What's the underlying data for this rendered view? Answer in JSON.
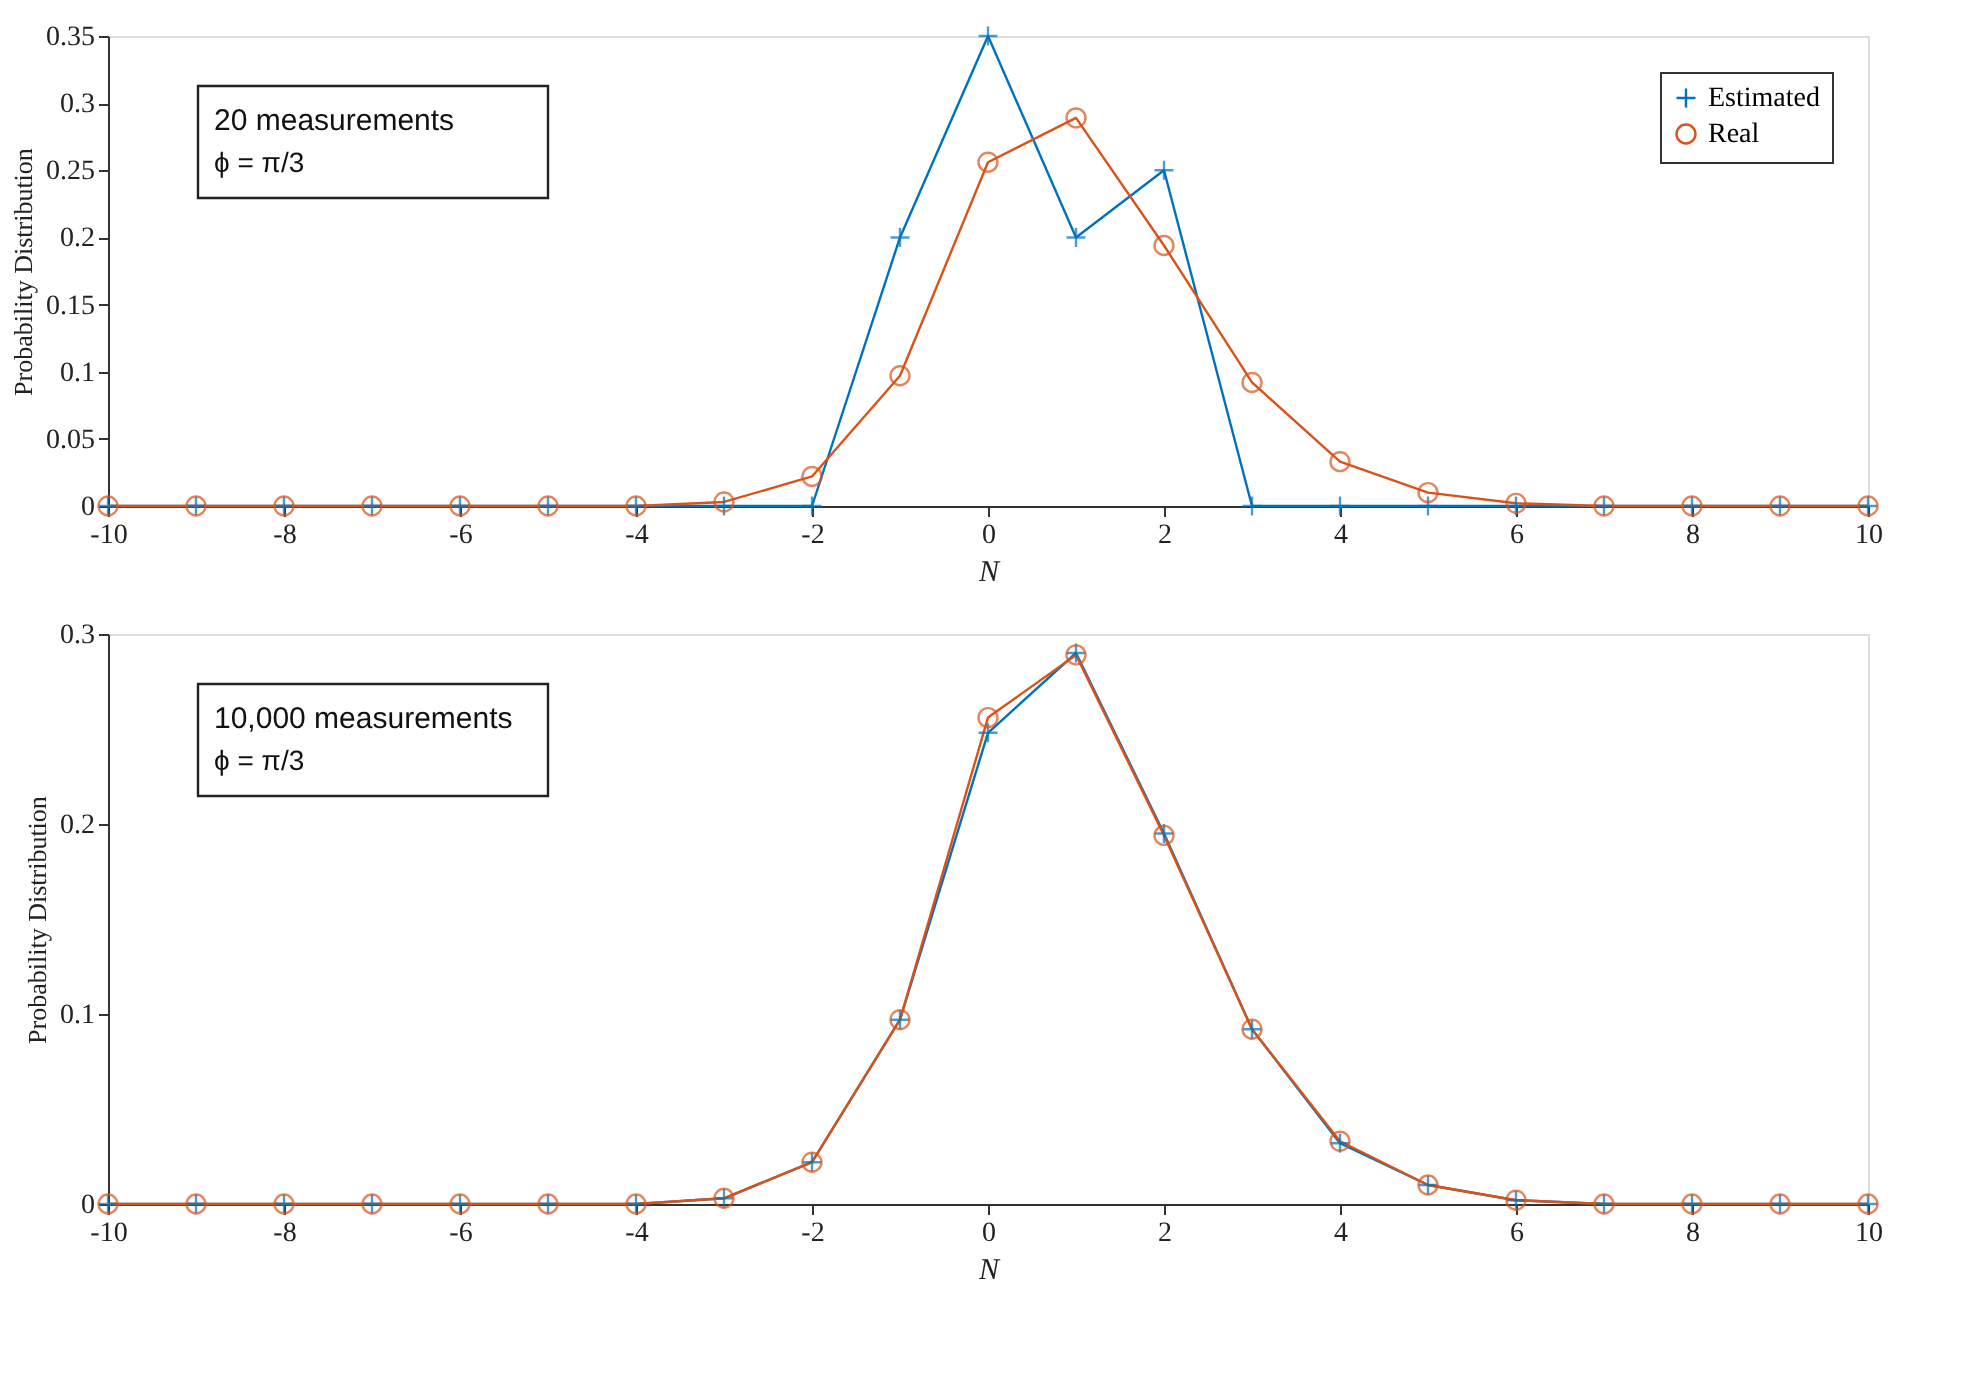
{
  "chart_data": [
    {
      "type": "line",
      "xlabel": "N",
      "ylabel": "Probability Distribution",
      "legend": "top right",
      "grid": false,
      "annotations": [
        "20 measurements",
        "ϕ = π/3"
      ],
      "x": [
        -10,
        -9,
        -8,
        -7,
        -6,
        -5,
        -4,
        -3,
        -2,
        -1,
        0,
        1,
        2,
        3,
        4,
        5,
        6,
        7,
        8,
        9,
        10
      ],
      "series": [
        {
          "name": "Estimated",
          "color": "#0072bd",
          "marker": "cross",
          "values": [
            0,
            0,
            0,
            0,
            0,
            0,
            0,
            0,
            0,
            0.2,
            0.35,
            0.2,
            0.25,
            0,
            0,
            0,
            0,
            0,
            0,
            0,
            0
          ]
        },
        {
          "name": "Real",
          "color": "#d95319",
          "marker": "circle",
          "values": [
            0,
            0,
            0,
            0,
            0,
            0,
            0,
            0.003,
            0.022,
            0.097,
            0.256,
            0.289,
            0.194,
            0.092,
            0.033,
            0.01,
            0.002,
            0,
            0,
            0,
            0
          ]
        }
      ],
      "xlim": [
        -10,
        10
      ],
      "xticks": [
        -10,
        -8,
        -6,
        -4,
        -2,
        0,
        2,
        4,
        6,
        8,
        10
      ],
      "ylim": [
        0,
        0.35
      ],
      "yticks": [
        0,
        0.05,
        0.1,
        0.15,
        0.2,
        0.25,
        0.3,
        0.35
      ]
    },
    {
      "type": "line",
      "xlabel": "N",
      "ylabel": "Probability Distribution",
      "legend": "top right",
      "grid": false,
      "annotations": [
        "10,000 measurements",
        "ϕ = π/3"
      ],
      "x": [
        -10,
        -9,
        -8,
        -7,
        -6,
        -5,
        -4,
        -3,
        -2,
        -1,
        0,
        1,
        2,
        3,
        4,
        5,
        6,
        7,
        8,
        9,
        10
      ],
      "series": [
        {
          "name": "Estimated",
          "color": "#0072bd",
          "marker": "cross",
          "values": [
            0,
            0,
            0,
            0,
            0,
            0,
            0,
            0.003,
            0.022,
            0.097,
            0.248,
            0.29,
            0.195,
            0.092,
            0.032,
            0.01,
            0.002,
            0,
            0,
            0,
            0
          ]
        },
        {
          "name": "Real",
          "color": "#d95319",
          "marker": "circle",
          "values": [
            0,
            0,
            0,
            0,
            0,
            0,
            0,
            0.003,
            0.022,
            0.097,
            0.256,
            0.289,
            0.194,
            0.092,
            0.033,
            0.01,
            0.002,
            0,
            0,
            0,
            0
          ]
        }
      ],
      "xlim": [
        -10,
        10
      ],
      "xticks": [
        -10,
        -8,
        -6,
        -4,
        -2,
        0,
        2,
        4,
        6,
        8,
        10
      ],
      "ylim": [
        0,
        0.3
      ],
      "yticks": [
        0,
        0.1,
        0.2,
        0.3
      ]
    }
  ]
}
